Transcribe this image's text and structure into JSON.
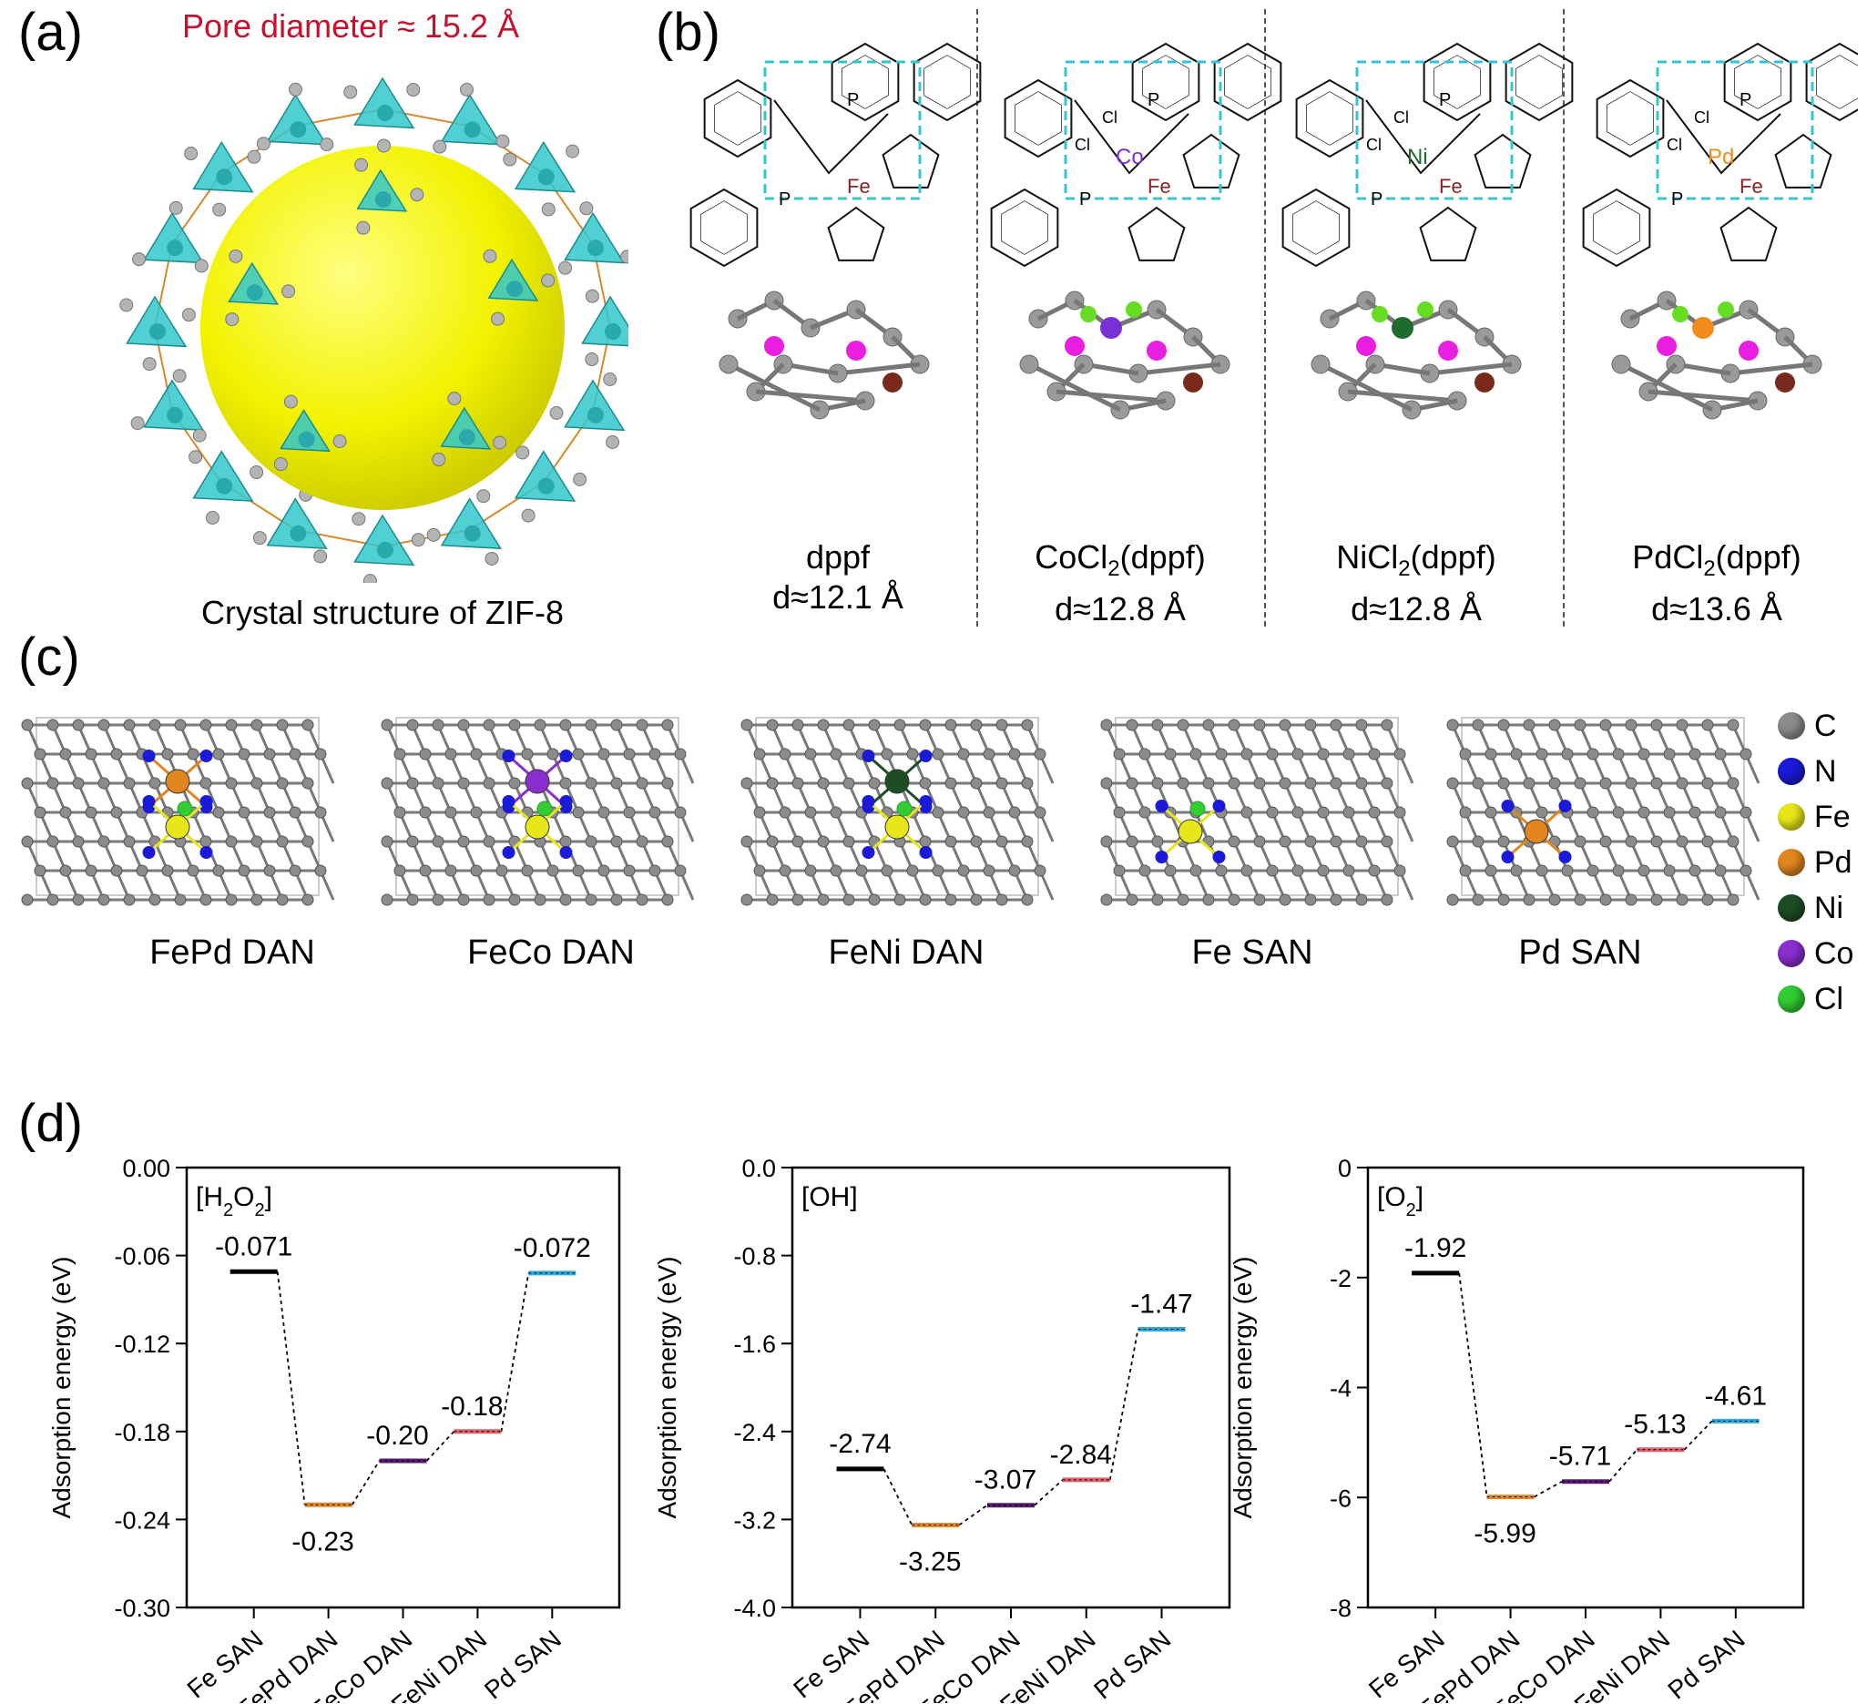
{
  "panels": {
    "a": {
      "label": "(a)",
      "pore_text": "Pore diameter ≈ 15.2 Å",
      "caption": "Crystal structure of ZIF-8",
      "colors": {
        "pore": "#f2f200",
        "tetra": "#33c8cc",
        "bond": "#d9892a",
        "atom": "#b4b4b4",
        "title": "#c8102e"
      }
    },
    "b": {
      "label": "(b)",
      "molecules": [
        {
          "name": "dppf",
          "d": "d≈12.1 Å",
          "metal": "",
          "metal_color": "#000000",
          "cl": "",
          "fe": "Fe",
          "p": "P"
        },
        {
          "name_main": "CoCl",
          "name_sub": "2",
          "name_tail": "(dppf)",
          "d": "d≈12.8 Å",
          "metal": "Co",
          "metal_color": "#7b2fd6",
          "cl": "Cl",
          "fe": "Fe",
          "p": "P"
        },
        {
          "name_main": "NiCl",
          "name_sub": "2",
          "name_tail": "(dppf)",
          "d": "d≈12.8 Å",
          "metal": "Ni",
          "metal_color": "#1f6b2b",
          "cl": "Cl",
          "fe": "Fe",
          "p": "P"
        },
        {
          "name_main": "PdCl",
          "name_sub": "2",
          "name_tail": "(dppf)",
          "d": "d≈13.6 Å",
          "metal": "Pd",
          "metal_color": "#ef8c1a",
          "cl": "Cl",
          "fe": "Fe",
          "p": "P"
        }
      ]
    },
    "c": {
      "label": "(c)",
      "structures": [
        "FePd DAN",
        "FeCo DAN",
        "FeNi DAN",
        "Fe SAN",
        "Pd SAN"
      ],
      "legend": [
        {
          "symbol": "C",
          "color": "#8c8c8c"
        },
        {
          "symbol": "N",
          "color": "#1a1ad8"
        },
        {
          "symbol": "Fe",
          "color": "#e6e619"
        },
        {
          "symbol": "Pd",
          "color": "#e2861f"
        },
        {
          "symbol": "Ni",
          "color": "#1d4d24"
        },
        {
          "symbol": "Co",
          "color": "#8a2ed0"
        },
        {
          "symbol": "Cl",
          "color": "#33cc33"
        }
      ]
    },
    "d": {
      "label": "(d)"
    }
  },
  "chart_data": [
    {
      "type": "line",
      "title": "",
      "inset_label": "[H2O2]",
      "inset_main": "[H",
      "inset_s1": "2",
      "inset_mid": "O",
      "inset_s2": "2",
      "inset_end": "]",
      "categories": [
        "Fe SAN",
        "FePd DAN",
        "FeCo DAN",
        "FeNi DAN",
        "Pd SAN"
      ],
      "values": [
        -0.071,
        -0.23,
        -0.2,
        -0.18,
        -0.072
      ],
      "value_labels": [
        "-0.071",
        "-0.23",
        "-0.20",
        "-0.18",
        "-0.072"
      ],
      "ylabel": "Adsorption energy (eV)",
      "ylim": [
        -0.3,
        0.0
      ],
      "yticks": [
        0.0,
        -0.06,
        -0.12,
        -0.18,
        -0.24,
        -0.3
      ],
      "ytick_labels": [
        "0.00",
        "-0.06",
        "-0.12",
        "-0.18",
        "-0.24",
        "-0.30"
      ],
      "colors": [
        "#000000",
        "#e8892a",
        "#5b1a74",
        "#e0626b",
        "#33aadd"
      ]
    },
    {
      "type": "line",
      "title": "",
      "inset_label": "[OH]",
      "categories": [
        "Fe SAN",
        "FePd DAN",
        "FeCo DAN",
        "FeNi DAN",
        "Pd SAN"
      ],
      "values": [
        -2.74,
        -3.25,
        -3.07,
        -2.84,
        -1.47
      ],
      "value_labels": [
        "-2.74",
        "-3.25",
        "-3.07",
        "-2.84",
        "-1.47"
      ],
      "ylabel": "Adsorption energy (eV)",
      "ylim": [
        -4.0,
        0.0
      ],
      "yticks": [
        0.0,
        -0.8,
        -1.6,
        -2.4,
        -3.2,
        -4.0
      ],
      "ytick_labels": [
        "0.0",
        "-0.8",
        "-1.6",
        "-2.4",
        "-3.2",
        "-4.0"
      ],
      "colors": [
        "#000000",
        "#e8892a",
        "#5b1a74",
        "#e0626b",
        "#33aadd"
      ]
    },
    {
      "type": "line",
      "title": "",
      "inset_label": "[O2]",
      "inset_main": "[O",
      "inset_s1": "2",
      "inset_end": "]",
      "categories": [
        "Fe SAN",
        "FePd DAN",
        "FeCo DAN",
        "FeNi DAN",
        "Pd SAN"
      ],
      "values": [
        -1.92,
        -5.99,
        -5.71,
        -5.13,
        -4.61
      ],
      "value_labels": [
        "-1.92",
        "-5.99",
        "-5.71",
        "-5.13",
        "-4.61"
      ],
      "ylabel": "Adsorption energy (eV)",
      "ylim": [
        -8,
        0
      ],
      "yticks": [
        0,
        -2,
        -4,
        -6,
        -8
      ],
      "ytick_labels": [
        "0",
        "-2",
        "-4",
        "-6",
        "-8"
      ],
      "colors": [
        "#000000",
        "#e8892a",
        "#5b1a74",
        "#e0626b",
        "#33aadd"
      ]
    }
  ]
}
